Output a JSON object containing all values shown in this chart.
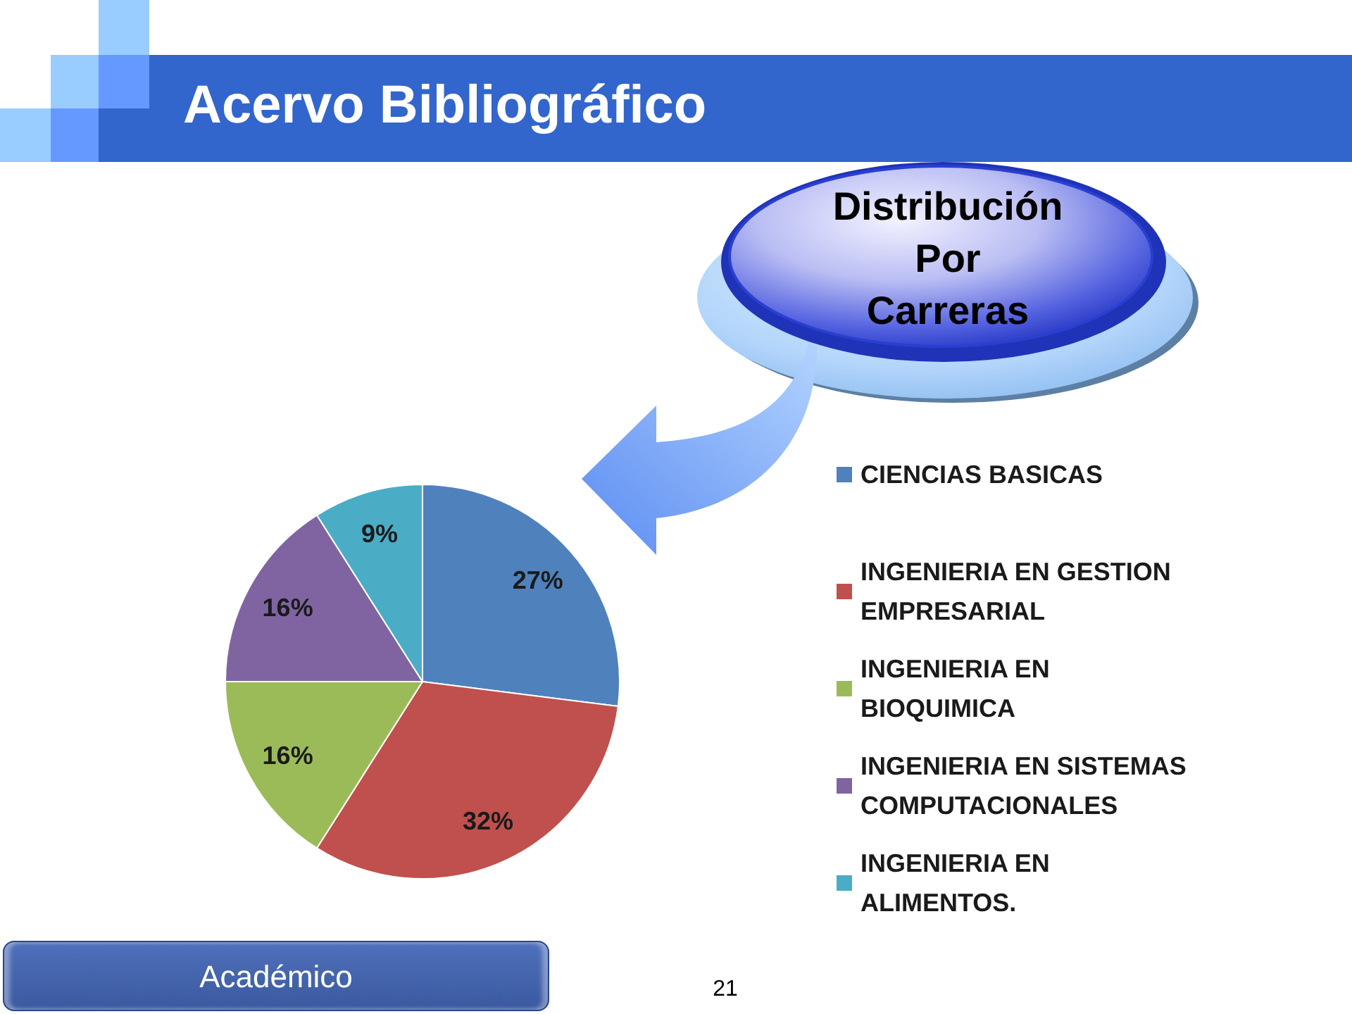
{
  "chart_data": {
    "type": "pie",
    "title": "Acervo Bibliográfico",
    "subtitle": "Distribución Por Carreras",
    "categories": [
      "CIENCIAS BASICAS",
      "INGENIERIA EN GESTION EMPRESARIAL",
      "INGENIERIA EN BIOQUIMICA",
      "INGENIERIA EN SISTEMAS COMPUTACIONALES",
      "INGENIERIA EN ALIMENTOS."
    ],
    "values": [
      27,
      32,
      16,
      16,
      9
    ],
    "value_labels": [
      "27%",
      "32%",
      "16%",
      "16%",
      "9%"
    ],
    "colors": [
      "#4f81bd",
      "#c0504d",
      "#9bbb59",
      "#8064a2",
      "#4bacc6"
    ],
    "legend": "right",
    "annotations": [
      "Académico",
      "21"
    ]
  }
}
